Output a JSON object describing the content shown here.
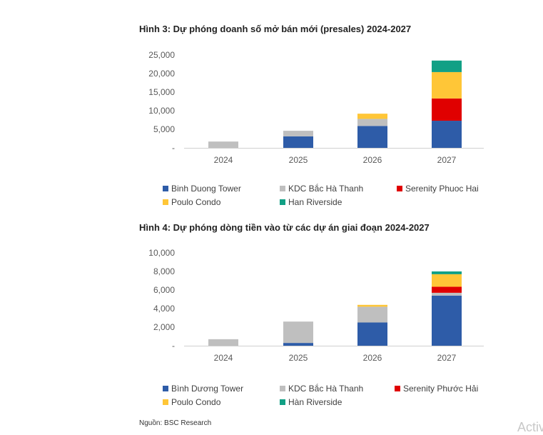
{
  "chart_data": [
    {
      "type": "bar",
      "stacked": true,
      "title": "Hình 3: Dự phóng doanh số mở bán mới (presales) 2024-2027",
      "categories": [
        "2024",
        "2025",
        "2026",
        "2027"
      ],
      "ylim": [
        0,
        25000
      ],
      "yticks": [
        "-",
        "5,000",
        "10,000",
        "15,000",
        "20,000",
        "25,000"
      ],
      "grid": false,
      "legend_position": "bottom",
      "series": [
        {
          "name": "Binh Duong Tower",
          "color": "#2E5CA8",
          "values": [
            0,
            3100,
            5900,
            7300
          ]
        },
        {
          "name": "KDC Bắc Hà Thanh",
          "color": "#BFBFBF",
          "values": [
            1700,
            1500,
            1900,
            0
          ]
        },
        {
          "name": "Serenity Phuoc Hai",
          "color": "#E00000",
          "values": [
            0,
            0,
            0,
            6000
          ]
        },
        {
          "name": "Poulo Condo",
          "color": "#FFC637",
          "values": [
            0,
            0,
            1400,
            7100
          ]
        },
        {
          "name": "Han Riverside",
          "color": "#11A085",
          "values": [
            0,
            0,
            0,
            3100
          ]
        }
      ]
    },
    {
      "type": "bar",
      "stacked": true,
      "title": "Hình 4: Dự phóng dòng tiền vào từ các dự án giai đoạn 2024-2027",
      "categories": [
        "2024",
        "2025",
        "2026",
        "2027"
      ],
      "ylim": [
        0,
        10000
      ],
      "yticks": [
        "-",
        "2,000",
        "4,000",
        "6,000",
        "8,000",
        "10,000"
      ],
      "grid": false,
      "legend_position": "bottom",
      "series": [
        {
          "name": "Bình Dương Tower",
          "color": "#2E5CA8",
          "values": [
            0,
            300,
            2500,
            5400
          ]
        },
        {
          "name": "KDC Bắc Hà Thanh",
          "color": "#BFBFBF",
          "values": [
            700,
            2300,
            1700,
            300
          ]
        },
        {
          "name": "Serenity Phước Hải",
          "color": "#E00000",
          "values": [
            0,
            0,
            0,
            650
          ]
        },
        {
          "name": "Poulo Condo",
          "color": "#FFC637",
          "values": [
            0,
            0,
            200,
            1350
          ]
        },
        {
          "name": "Hàn Riverside",
          "color": "#11A085",
          "values": [
            0,
            0,
            0,
            300
          ]
        }
      ]
    }
  ],
  "source": "Nguồn: BSC Research",
  "watermark": "Activ"
}
